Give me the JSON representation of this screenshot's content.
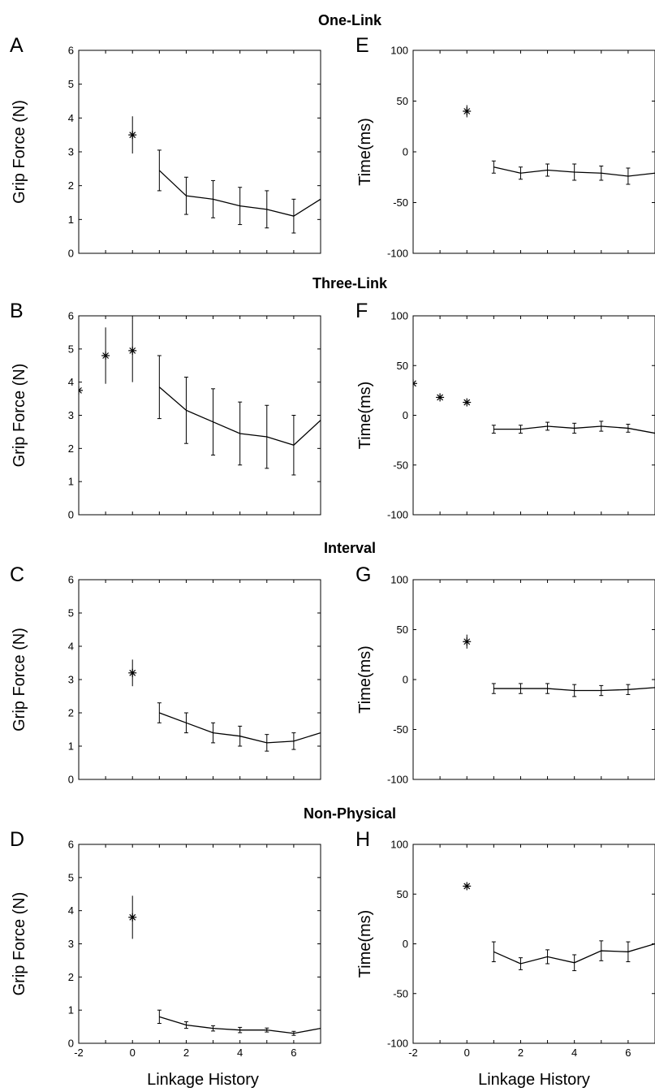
{
  "row_titles": [
    "One-Link",
    "Three-Link",
    "Interval",
    "Non-Physical"
  ],
  "chart_data": [
    {
      "panel": "A",
      "type": "line",
      "ylabel": "Grip Force (N)",
      "xlabel": "",
      "xlim": [
        -2,
        7
      ],
      "ylim": [
        0,
        6
      ],
      "xticks": [],
      "yticks": [
        0,
        1,
        2,
        3,
        4,
        5,
        6
      ],
      "star_points": [
        {
          "x": 0,
          "y": 3.5,
          "err": 0.55
        }
      ],
      "series": [
        {
          "x": [
            1,
            2,
            3,
            4,
            5,
            6,
            7
          ],
          "y": [
            2.45,
            1.7,
            1.6,
            1.4,
            1.3,
            1.1,
            1.6
          ],
          "err": [
            0.6,
            0.55,
            0.55,
            0.55,
            0.55,
            0.5,
            0
          ]
        }
      ]
    },
    {
      "panel": "E",
      "type": "line",
      "ylabel": "Time(ms)",
      "xlabel": "",
      "xlim": [
        -2,
        7
      ],
      "ylim": [
        -100,
        100
      ],
      "xticks": [],
      "yticks": [
        -100,
        -50,
        0,
        50,
        100
      ],
      "star_points": [
        {
          "x": 0,
          "y": 40,
          "err": 6
        }
      ],
      "series": [
        {
          "x": [
            1,
            2,
            3,
            4,
            5,
            6,
            7
          ],
          "y": [
            -15,
            -21,
            -18,
            -20,
            -21,
            -24,
            -21
          ],
          "err": [
            6,
            6,
            6,
            8,
            7,
            8,
            0
          ]
        }
      ]
    },
    {
      "panel": "B",
      "type": "line",
      "ylabel": "Grip Force (N)",
      "xlabel": "",
      "xlim": [
        -2,
        7
      ],
      "ylim": [
        0,
        6
      ],
      "xticks": [],
      "yticks": [
        0,
        1,
        2,
        3,
        4,
        5,
        6
      ],
      "star_points": [
        {
          "x": -2,
          "y": 3.75,
          "err": 0
        },
        {
          "x": -1,
          "y": 4.8,
          "err": 0.85
        },
        {
          "x": 0,
          "y": 4.95,
          "err": 0.95
        }
      ],
      "series": [
        {
          "x": [
            1,
            2,
            3,
            4,
            5,
            6,
            7
          ],
          "y": [
            3.85,
            3.15,
            2.8,
            2.45,
            2.35,
            2.1,
            2.85
          ],
          "err": [
            0.95,
            1.0,
            1.0,
            0.95,
            0.95,
            0.9,
            0
          ]
        }
      ]
    },
    {
      "panel": "F",
      "type": "line",
      "ylabel": "Time(ms)",
      "xlabel": "",
      "xlim": [
        -2,
        7
      ],
      "ylim": [
        -100,
        100
      ],
      "xticks": [],
      "yticks": [
        -100,
        -50,
        0,
        50,
        100
      ],
      "star_points": [
        {
          "x": -2,
          "y": 32,
          "err": 0
        },
        {
          "x": -1,
          "y": 18,
          "err": 0
        },
        {
          "x": 0,
          "y": 13,
          "err": 0
        }
      ],
      "series": [
        {
          "x": [
            1,
            2,
            3,
            4,
            5,
            6,
            7
          ],
          "y": [
            -14,
            -14,
            -11,
            -13,
            -11,
            -13,
            -18
          ],
          "err": [
            4,
            4,
            4,
            5,
            5,
            4,
            0
          ]
        }
      ]
    },
    {
      "panel": "C",
      "type": "line",
      "ylabel": "Grip Force (N)",
      "xlabel": "",
      "xlim": [
        -2,
        7
      ],
      "ylim": [
        0,
        6
      ],
      "xticks": [],
      "yticks": [
        0,
        1,
        2,
        3,
        4,
        5,
        6
      ],
      "star_points": [
        {
          "x": 0,
          "y": 3.2,
          "err": 0.4
        }
      ],
      "series": [
        {
          "x": [
            1,
            2,
            3,
            4,
            5,
            6,
            7
          ],
          "y": [
            2.0,
            1.7,
            1.4,
            1.3,
            1.1,
            1.15,
            1.4
          ],
          "err": [
            0.3,
            0.3,
            0.3,
            0.3,
            0.25,
            0.25,
            0
          ]
        }
      ]
    },
    {
      "panel": "G",
      "type": "line",
      "ylabel": "Time(ms)",
      "xlabel": "",
      "xlim": [
        -2,
        7
      ],
      "ylim": [
        -100,
        100
      ],
      "xticks": [],
      "yticks": [
        -100,
        -50,
        0,
        50,
        100
      ],
      "star_points": [
        {
          "x": 0,
          "y": 38,
          "err": 7
        }
      ],
      "series": [
        {
          "x": [
            1,
            2,
            3,
            4,
            5,
            6,
            7
          ],
          "y": [
            -9,
            -9,
            -9,
            -11,
            -11,
            -10,
            -8
          ],
          "err": [
            5,
            5,
            5,
            6,
            5,
            5,
            0
          ]
        }
      ]
    },
    {
      "panel": "D",
      "type": "line",
      "ylabel": "Grip Force (N)",
      "xlabel": "Linkage History",
      "xlim": [
        -2,
        7
      ],
      "ylim": [
        0,
        6
      ],
      "xticks": [
        -2,
        0,
        2,
        4,
        6
      ],
      "yticks": [
        0,
        1,
        2,
        3,
        4,
        5,
        6
      ],
      "star_points": [
        {
          "x": 0,
          "y": 3.8,
          "err": 0.65
        }
      ],
      "series": [
        {
          "x": [
            1,
            2,
            3,
            4,
            5,
            6,
            7
          ],
          "y": [
            0.8,
            0.55,
            0.45,
            0.4,
            0.4,
            0.3,
            0.45
          ],
          "err": [
            0.2,
            0.1,
            0.08,
            0.08,
            0.06,
            0.06,
            0
          ]
        }
      ]
    },
    {
      "panel": "H",
      "type": "line",
      "ylabel": "Time(ms)",
      "xlabel": "Linkage History",
      "xlim": [
        -2,
        7
      ],
      "ylim": [
        -100,
        100
      ],
      "xticks": [
        -2,
        0,
        2,
        4,
        6
      ],
      "yticks": [
        -100,
        -50,
        0,
        50,
        100
      ],
      "star_points": [
        {
          "x": 0,
          "y": 58,
          "err": 0
        }
      ],
      "series": [
        {
          "x": [
            1,
            2,
            3,
            4,
            5,
            6,
            7
          ],
          "y": [
            -8,
            -20,
            -13,
            -19,
            -7,
            -8,
            0
          ],
          "err": [
            10,
            6,
            7,
            8,
            10,
            10,
            0
          ]
        }
      ]
    }
  ]
}
